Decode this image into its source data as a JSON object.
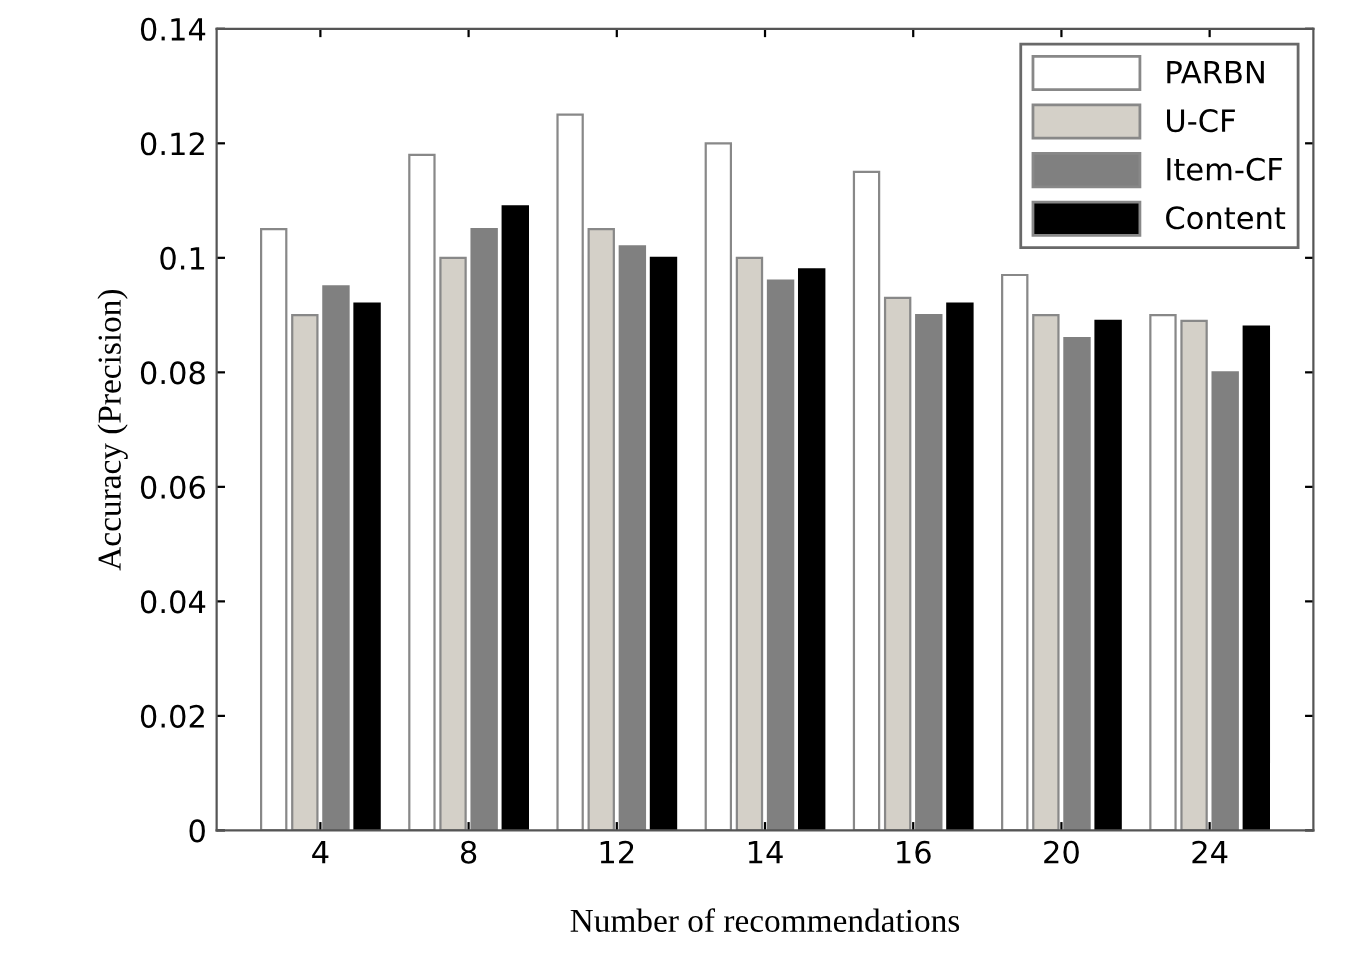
{
  "chart_data": {
    "type": "bar",
    "xlabel": "Number of recommendations",
    "ylabel": "Accuracy (Precision)",
    "categories": [
      "4",
      "8",
      "12",
      "14",
      "16",
      "20",
      "24"
    ],
    "series": [
      {
        "name": "PARBN",
        "color": "#ffffff",
        "values": [
          0.105,
          0.118,
          0.125,
          0.12,
          0.115,
          0.097,
          0.09
        ]
      },
      {
        "name": "U-CF",
        "color": "#d4d0c8",
        "values": [
          0.09,
          0.1,
          0.105,
          0.1,
          0.093,
          0.09,
          0.089
        ]
      },
      {
        "name": "Item-CF",
        "color": "#808080",
        "values": [
          0.095,
          0.105,
          0.102,
          0.096,
          0.09,
          0.086,
          0.08
        ]
      },
      {
        "name": "Content",
        "color": "#000000",
        "values": [
          0.092,
          0.109,
          0.1,
          0.098,
          0.092,
          0.089,
          0.088
        ]
      }
    ],
    "ylim": [
      0,
      0.14
    ],
    "yticks": [
      0,
      0.02,
      0.04,
      0.06,
      0.08,
      {
        "value": 0.1,
        "label": "0.1"
      },
      0.12,
      0.14
    ],
    "legend": "top right",
    "grid": false
  }
}
